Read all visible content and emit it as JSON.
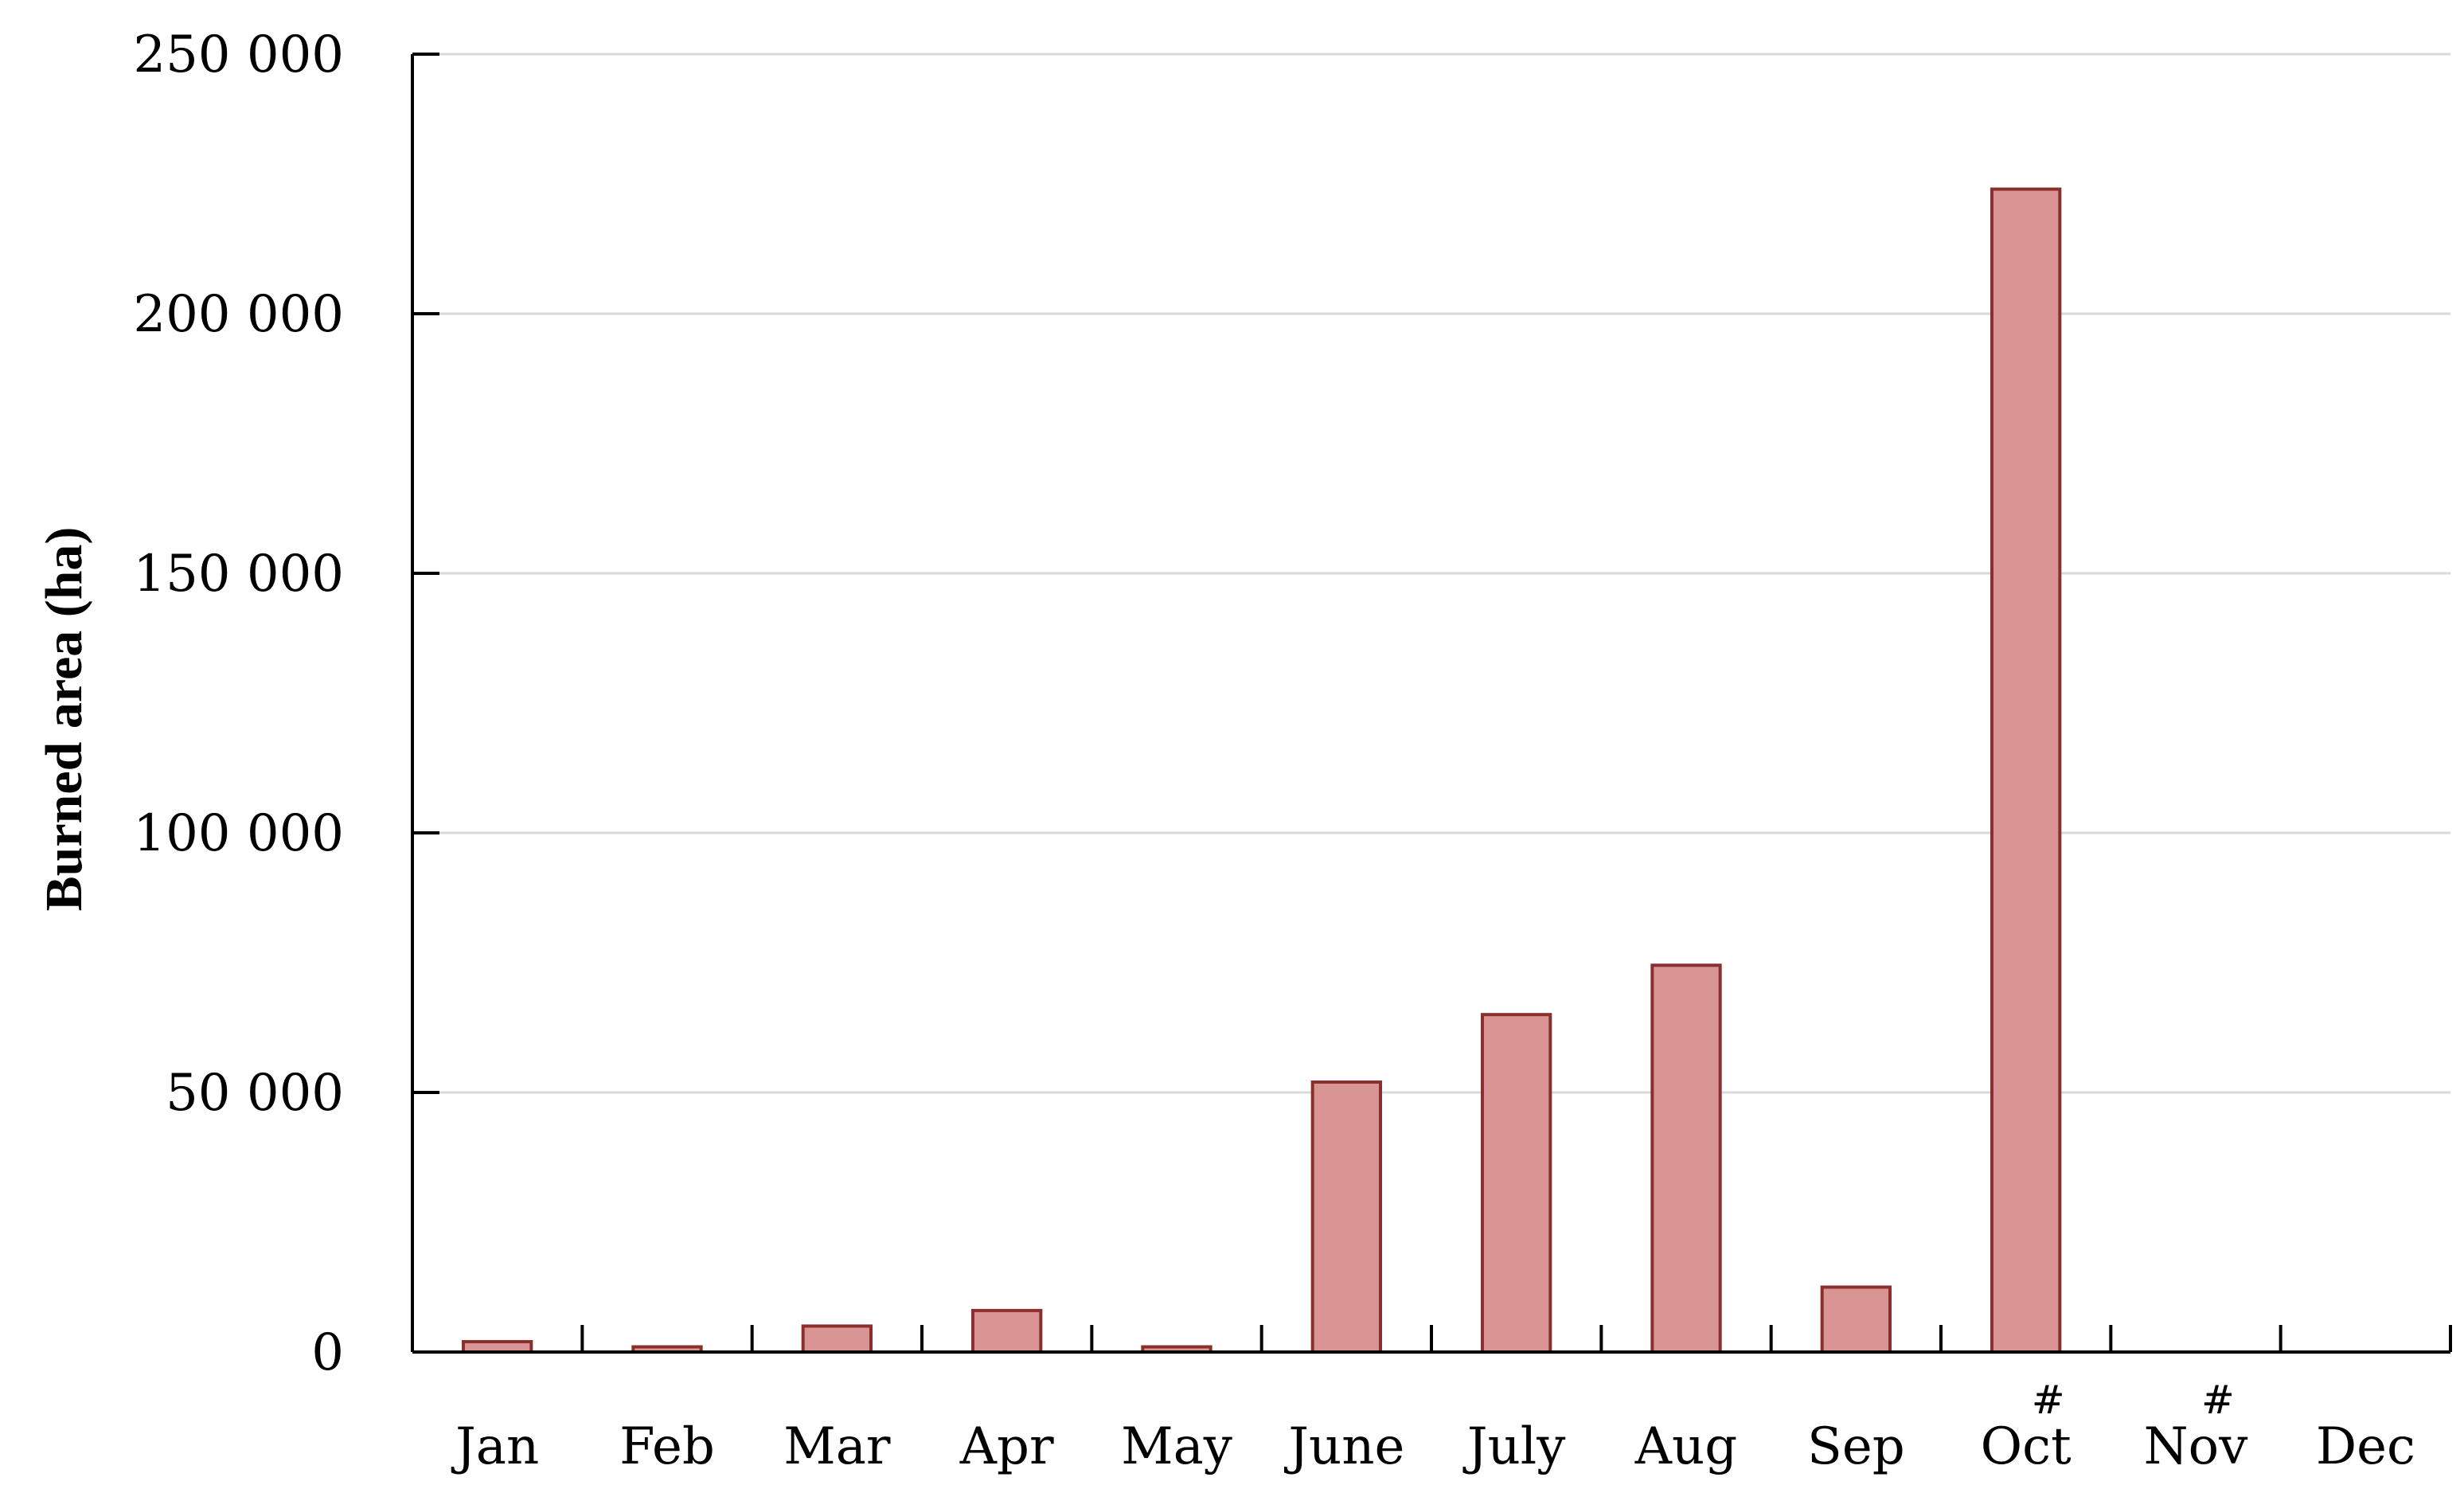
{
  "chart_data": {
    "type": "bar",
    "title": "",
    "xlabel": "",
    "ylabel": "Burned area (ha)",
    "ylim": [
      0,
      250000
    ],
    "yticks": [
      0,
      50000,
      100000,
      150000,
      200000,
      250000
    ],
    "ytick_labels": [
      "0",
      "50 000",
      "100 000",
      "150 000",
      "200 000",
      "250 000"
    ],
    "grid": "horizontal",
    "legend": "none",
    "categories": [
      "Jan",
      "Feb",
      "Mar",
      "Apr",
      "May",
      "June",
      "July",
      "Aug",
      "Sep",
      "Oct",
      "Nov",
      "Dec"
    ],
    "values": [
      2000,
      1000,
      5000,
      8000,
      1000,
      52000,
      65000,
      74500,
      12500,
      224000,
      0,
      0
    ],
    "annotations": [
      {
        "category": "Oct",
        "text": "#"
      },
      {
        "category": "Nov",
        "text": "#"
      }
    ],
    "colors": {
      "bar_fill": "#d99594",
      "bar_stroke": "#8b2e2e",
      "axis": "#000000",
      "grid": "#d9d9d9"
    }
  }
}
